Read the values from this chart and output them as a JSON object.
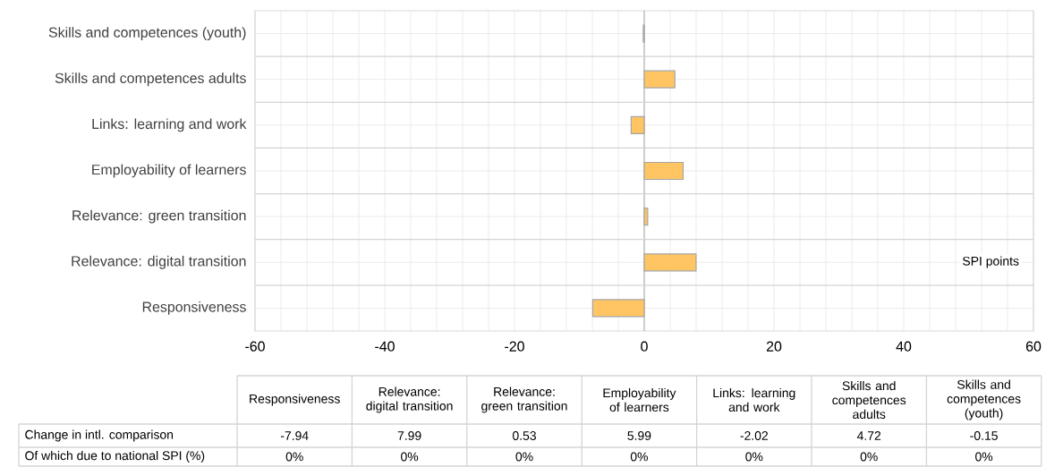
{
  "chart_data": {
    "type": "bar",
    "orientation": "horizontal",
    "xlabel": "SPI points",
    "categories": [
      "Skills and competences (youth)",
      "Skills and competences adults",
      "Links: learning and work",
      "Employability of learners",
      "Relevance: green transition",
      "Relevance: digital transition",
      "Responsiveness"
    ],
    "series": [
      {
        "name": "Change in intl. comparison",
        "color": "#ffc562",
        "values": [
          -0.15,
          4.72,
          -2.02,
          5.99,
          0.53,
          7.99,
          -7.94
        ]
      }
    ],
    "value_labels": [
      "-0.15",
      "4.72",
      "-2.02",
      "5.99",
      "0.53",
      "7.99",
      "-7.94"
    ],
    "xlim": [
      -60,
      60
    ],
    "xticks": [
      -60,
      -40,
      -20,
      0,
      20,
      40,
      60
    ],
    "grid": true,
    "annotations": [
      "Of which due to national SPI (%)",
      "0%",
      "0%",
      "0%",
      "0%",
      "0%",
      "0%",
      "0%"
    ]
  }
}
